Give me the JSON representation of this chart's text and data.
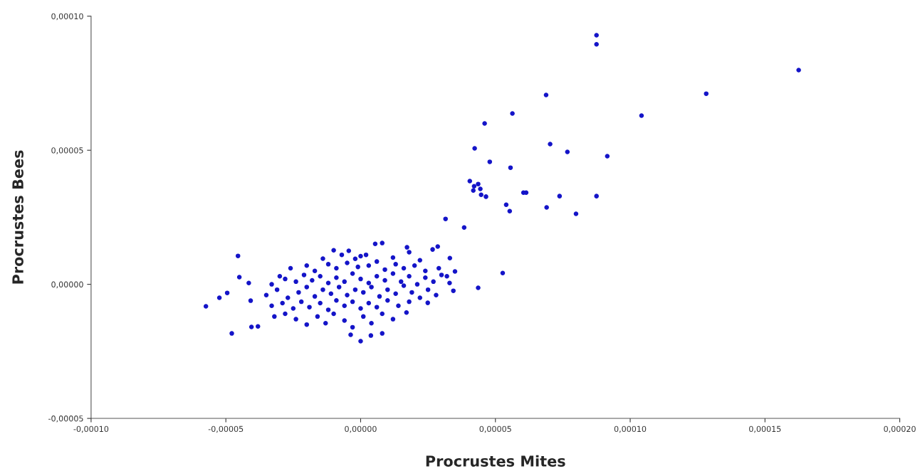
{
  "chart_data": {
    "type": "scatter",
    "xlabel": "Procrustes Mites",
    "ylabel": "Procrustes Bees",
    "xlim": [
      -0.0001,
      0.0002
    ],
    "ylim": [
      -5e-05,
      0.0001
    ],
    "xticks": [
      {
        "value": -0.0001,
        "label": "-0,00010"
      },
      {
        "value": -5e-05,
        "label": "-0,00005"
      },
      {
        "value": 0,
        "label": "0,00000"
      },
      {
        "value": 5e-05,
        "label": "0,00005"
      },
      {
        "value": 0.0001,
        "label": "0,00010"
      },
      {
        "value": 0.00015,
        "label": "0,00015"
      },
      {
        "value": 0.0002,
        "label": "0,00020"
      }
    ],
    "yticks": [
      {
        "value": -5e-05,
        "label": "-0,00005"
      },
      {
        "value": 0,
        "label": "0,00000"
      },
      {
        "value": 5e-05,
        "label": "0,00005"
      },
      {
        "value": 0.0001,
        "label": "0,00010"
      }
    ],
    "grid": false,
    "marker": "circle",
    "series": [
      {
        "color": "#1414c8",
        "x": [
          8.75e-05,
          8.75e-05,
          0.0001625,
          0.0001282,
          6.88e-05,
          0.0001042,
          5.63e-05,
          4.6e-05,
          7.03e-05,
          7.67e-05,
          4.23e-05,
          9.15e-05,
          4.79e-05,
          5.56e-05,
          4.05e-05,
          4.21e-05,
          4.36e-05,
          4.44e-05,
          4.47e-05,
          4.65e-05,
          4.18e-05,
          6.04e-05,
          6.14e-05,
          7.38e-05,
          6.9e-05,
          8.75e-05,
          5.4e-05,
          5.53e-05,
          7.99e-05,
          3.15e-05,
          3.84e-05,
          5.27e-05,
          4.36e-05,
          -5.74e-05,
          -5.24e-05,
          -4.95e-05,
          -4.55e-05,
          -4.5e-05,
          -4.15e-05,
          -4.78e-05,
          -4.08e-05,
          -4.05e-05,
          -3.81e-05,
          0.0,
          -3.7e-06,
          3.8e-06,
          8e-06,
          -1.4e-05,
          -1e-05,
          -7e-06,
          -4.4e-06,
          -2e-06,
          2e-06,
          5.4e-06,
          8e-06,
          1.2e-05,
          1.72e-05,
          2.2e-05,
          2.67e-05,
          2.86e-05,
          3.31e-05,
          1.8e-05,
          0.0,
          -2.6e-05,
          -2e-05,
          -1.7e-05,
          -1.2e-05,
          -9e-06,
          -5e-06,
          -1e-06,
          3e-06,
          6e-06,
          9e-06,
          1.3e-05,
          1.6e-05,
          2e-05,
          2.4e-05,
          2.9e-05,
          3.5e-05,
          3.2e-05,
          -3e-05,
          -3.3e-05,
          -2.8e-05,
          -2.4e-05,
          -2.1e-05,
          -1.8e-05,
          -1.5e-05,
          -1.2e-05,
          -9e-06,
          -6e-06,
          -3e-06,
          0.0,
          3e-06,
          6e-06,
          9e-06,
          1.2e-05,
          1.5e-05,
          1.8e-05,
          2.1e-05,
          2.4e-05,
          2.7e-05,
          3e-05,
          3.3e-05,
          -3.5e-05,
          -3.1e-05,
          -2.7e-05,
          -2.3e-05,
          -2e-05,
          -1.7e-05,
          -1.4e-05,
          -1.1e-05,
          -8e-06,
          -5e-06,
          -2e-06,
          1e-06,
          4e-06,
          7e-06,
          1e-05,
          1.3e-05,
          1.6e-05,
          1.9e-05,
          2.2e-05,
          2.5e-05,
          2.8e-05,
          3.44e-05,
          -3.3e-05,
          -2.9e-05,
          -2.5e-05,
          -2.2e-05,
          -1.9e-05,
          -1.5e-05,
          -1.2e-05,
          -9e-06,
          -6e-06,
          -3e-06,
          0.0,
          3e-06,
          6e-06,
          1e-05,
          1.4e-05,
          1.8e-05,
          2.49e-05,
          -3.2e-05,
          -2.8e-05,
          -2.4e-05,
          -2e-05,
          -1.6e-05,
          -1.3e-05,
          -1e-05,
          -6e-06,
          -3e-06,
          1e-06,
          4e-06,
          8e-06,
          1.2e-05,
          1.7e-05
        ],
        "values": [
          9.29e-05,
          8.95e-05,
          7.99e-05,
          7.11e-05,
          7.06e-05,
          6.29e-05,
          6.37e-05,
          6e-05,
          5.23e-05,
          4.94e-05,
          5.07e-05,
          4.78e-05,
          4.57e-05,
          4.35e-05,
          3.85e-05,
          3.66e-05,
          3.74e-05,
          3.56e-05,
          3.34e-05,
          3.27e-05,
          3.5e-05,
          3.42e-05,
          3.42e-05,
          3.29e-05,
          2.87e-05,
          3.29e-05,
          2.97e-05,
          2.73e-05,
          2.63e-05,
          2.44e-05,
          2.12e-05,
          4.2e-06,
          -1.3e-06,
          -8.2e-06,
          -5e-06,
          -3.2e-06,
          1.06e-05,
          2.7e-06,
          5e-07,
          -1.83e-05,
          -6.1e-06,
          -1.59e-05,
          -1.57e-05,
          -2.12e-05,
          -1.88e-05,
          -1.91e-05,
          -1.83e-05,
          9.6e-06,
          1.27e-05,
          1.1e-05,
          1.25e-05,
          9.5e-06,
          1.1e-05,
          1.51e-05,
          1.54e-05,
          1e-05,
          1.38e-05,
          9e-06,
          1.3e-05,
          1.41e-05,
          9.8e-06,
          1.2e-05,
          1.05e-05,
          6e-06,
          7e-06,
          5e-06,
          7.5e-06,
          6e-06,
          8e-06,
          6.5e-06,
          7e-06,
          8.5e-06,
          5.5e-06,
          7.5e-06,
          6e-06,
          7e-06,
          5e-06,
          6e-06,
          4.8e-06,
          3e-06,
          3e-06,
          0.0,
          2e-06,
          1e-06,
          3.5e-06,
          1.5e-06,
          3e-06,
          5e-07,
          2.5e-06,
          1e-06,
          4e-06,
          2e-06,
          5e-07,
          3e-06,
          1.5e-06,
          4e-06,
          1e-06,
          3e-06,
          0.0,
          2.5e-06,
          1e-06,
          3.5e-06,
          5e-07,
          -4e-06,
          -2e-06,
          -5e-06,
          -3e-06,
          -1e-06,
          -4.5e-06,
          -2e-06,
          -3.5e-06,
          -1e-06,
          -4e-06,
          -2e-06,
          -3e-06,
          -1e-06,
          -4.5e-06,
          -2e-06,
          -3.5e-06,
          -5e-07,
          -3e-06,
          -5e-06,
          -2e-06,
          -4e-06,
          -2.4e-06,
          -8e-06,
          -7e-06,
          -9e-06,
          -6.5e-06,
          -8.5e-06,
          -7e-06,
          -9.5e-06,
          -6e-06,
          -8e-06,
          -6.5e-06,
          -9e-06,
          -7e-06,
          -8.5e-06,
          -6e-06,
          -8e-06,
          -6.5e-06,
          -6.9e-06,
          -1.2e-05,
          -1.1e-05,
          -1.3e-05,
          -1.5e-05,
          -1.2e-05,
          -1.45e-05,
          -1.1e-05,
          -1.35e-05,
          -1.6e-05,
          -1.2e-05,
          -1.45e-05,
          -1.1e-05,
          -1.3e-05,
          -1.05e-05
        ]
      }
    ]
  }
}
